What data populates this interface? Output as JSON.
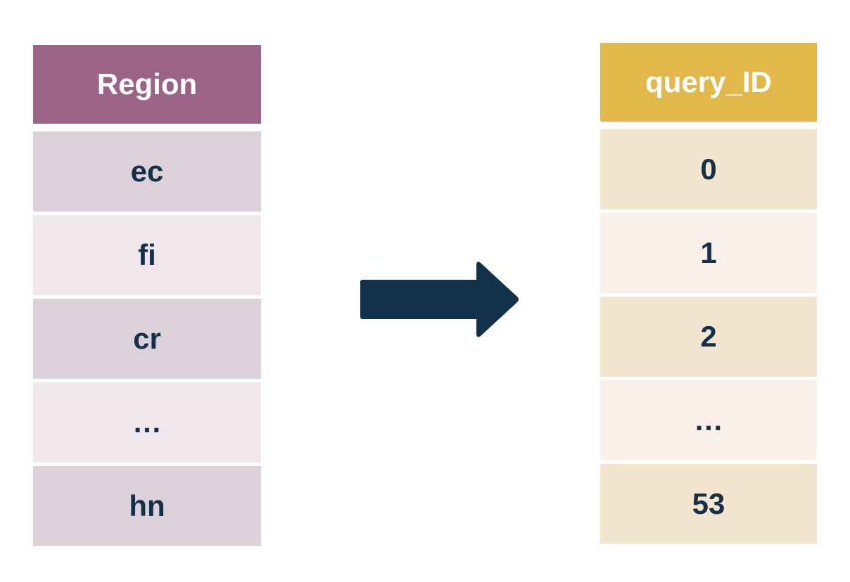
{
  "left_table": {
    "header": "Region",
    "rows": [
      "ec",
      "fi",
      "cr",
      "…",
      "hn"
    ]
  },
  "right_table": {
    "header": "query_ID",
    "rows": [
      "0",
      "1",
      "2",
      "…",
      "53"
    ]
  },
  "colors": {
    "left_header": "#9b6385",
    "left_row_dark": "#ddd1d9",
    "left_row_light": "#efe7ec",
    "right_header": "#e2b84b",
    "right_row_dark": "#f4e5cf",
    "right_row_light": "#f9f0ea",
    "arrow": "#11324a",
    "text": "#13314a"
  },
  "arrow_icon": "right-arrow-icon"
}
